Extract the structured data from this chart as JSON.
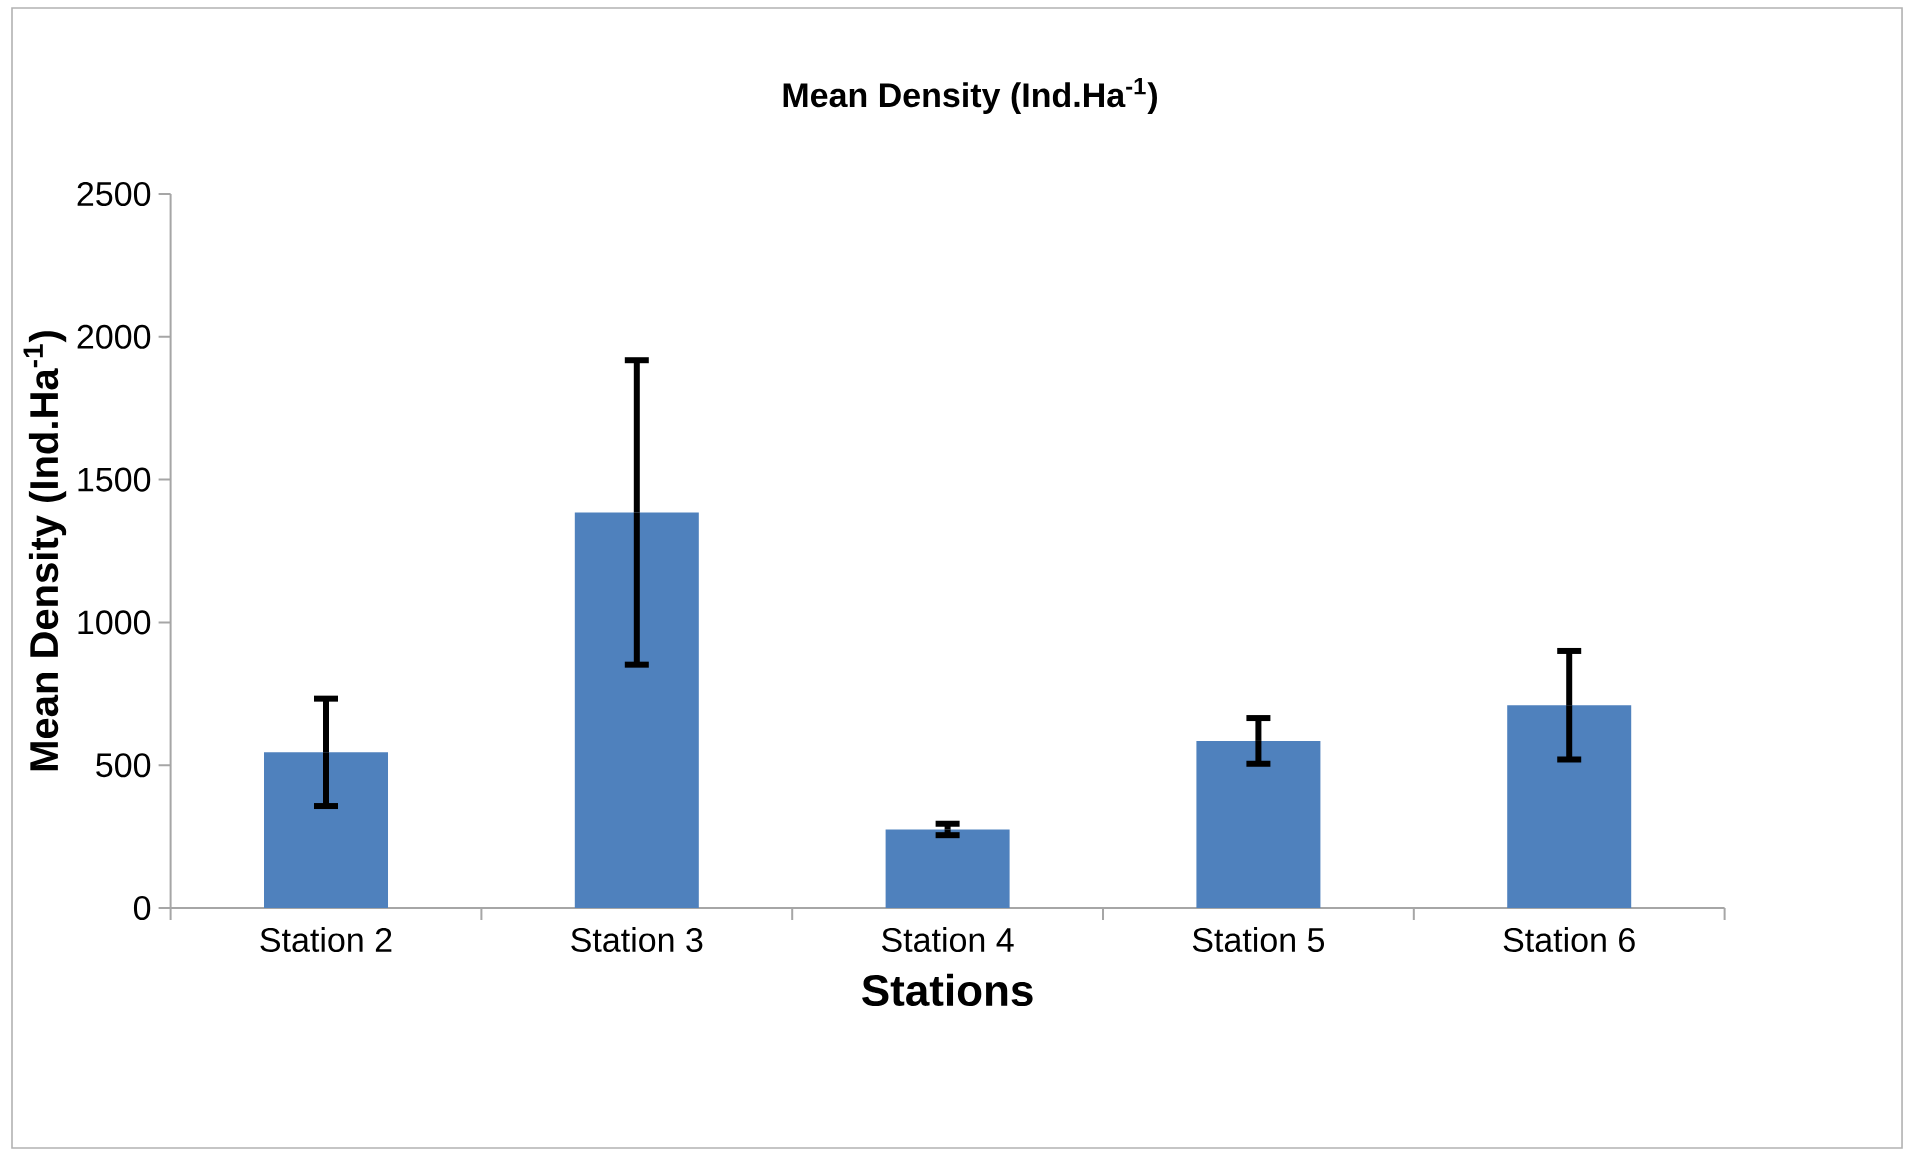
{
  "chart_data": {
    "type": "bar",
    "title": "**Mean Density (Ind.Ha$^{-1}$)**",
    "xlabel": "Stations",
    "ylabel": "Mean Density (Ind.Ha$^{-1}$)",
    "categories": [
      "Station 2",
      "Station 3",
      "Station 4",
      "Station 5",
      "Station 6"
    ],
    "values": [
      545,
      1385,
      275,
      585,
      710
    ],
    "errors": [
      188,
      533,
      20,
      80,
      190
    ],
    "color": "#4f81bd",
    "ylim": [
      0,
      2500
    ],
    "yticks": [
      0,
      500,
      1000,
      1500,
      2000,
      2500
    ],
    "grid": false
  }
}
